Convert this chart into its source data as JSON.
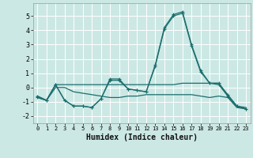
{
  "xlabel": "Humidex (Indice chaleur)",
  "bg_color": "#cce8e4",
  "grid_color": "#aad4d0",
  "line_color": "#1a6e6e",
  "xlim": [
    -0.5,
    23.5
  ],
  "ylim": [
    -2.5,
    5.9
  ],
  "yticks": [
    -2,
    -1,
    0,
    1,
    2,
    3,
    4,
    5
  ],
  "xticks": [
    0,
    1,
    2,
    3,
    4,
    5,
    6,
    7,
    8,
    9,
    10,
    11,
    12,
    13,
    14,
    15,
    16,
    17,
    18,
    19,
    20,
    21,
    22,
    23
  ],
  "series_smooth1": [
    -0.6,
    -0.9,
    0.2,
    0.2,
    0.2,
    0.2,
    0.2,
    0.2,
    0.2,
    0.2,
    0.2,
    0.2,
    0.2,
    0.2,
    0.2,
    0.2,
    0.3,
    0.3,
    0.3,
    0.3,
    0.3,
    -0.6,
    -1.3,
    -1.4
  ],
  "series_smooth2": [
    -0.7,
    -0.9,
    0.0,
    0.0,
    -0.3,
    -0.4,
    -0.5,
    -0.6,
    -0.7,
    -0.7,
    -0.6,
    -0.6,
    -0.5,
    -0.5,
    -0.5,
    -0.5,
    -0.5,
    -0.5,
    -0.6,
    -0.7,
    -0.6,
    -0.7,
    -1.4,
    -1.5
  ],
  "series_main1": [
    -0.6,
    -0.9,
    0.2,
    -0.9,
    -1.3,
    -1.3,
    -1.4,
    -0.8,
    0.5,
    0.5,
    -0.1,
    -0.2,
    -0.3,
    1.5,
    4.1,
    5.0,
    5.2,
    2.9,
    1.1,
    0.3,
    0.2,
    -0.6,
    -1.3,
    -1.5
  ],
  "series_main2": [
    -0.7,
    -0.9,
    0.2,
    -0.9,
    -1.3,
    -1.3,
    -1.4,
    -0.8,
    0.6,
    0.6,
    -0.1,
    -0.2,
    -0.3,
    1.6,
    4.2,
    5.1,
    5.3,
    3.0,
    1.2,
    0.3,
    0.3,
    -0.5,
    -1.3,
    -1.5
  ]
}
